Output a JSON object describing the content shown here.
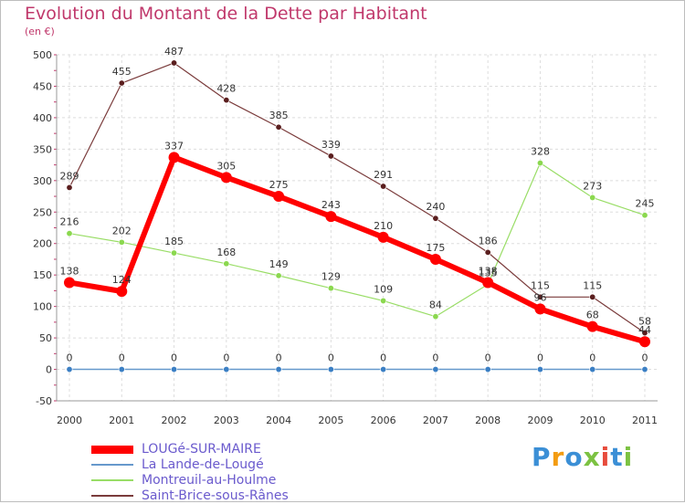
{
  "chart_data": {
    "type": "line",
    "title": "Evolution du Montant de la Dette par Habitant",
    "unit_label": "(en €)",
    "xlabel": "",
    "ylabel": "",
    "categories": [
      "2000",
      "2001",
      "2002",
      "2003",
      "2004",
      "2005",
      "2006",
      "2007",
      "2008",
      "2009",
      "2010",
      "2011"
    ],
    "ylim": [
      -50,
      500
    ],
    "yticks": [
      -50,
      0,
      50,
      100,
      150,
      200,
      250,
      300,
      350,
      400,
      450,
      500
    ],
    "grid": true,
    "legend_position": "bottom-left",
    "series": [
      {
        "name": "LOUGé-SUR-MAIRE",
        "color": "#ff0000",
        "values": [
          138,
          124,
          337,
          305,
          275,
          243,
          210,
          175,
          138,
          96,
          68,
          44
        ]
      },
      {
        "name": "La Lande-de-Lougé",
        "color": "#6699cc",
        "values": [
          0,
          0,
          0,
          0,
          0,
          0,
          0,
          0,
          0,
          0,
          0,
          0
        ]
      },
      {
        "name": "Montreuil-au-Houlme",
        "color": "#99dd66",
        "values": [
          216,
          202,
          185,
          168,
          149,
          129,
          109,
          84,
          135,
          328,
          273,
          245
        ]
      },
      {
        "name": "Saint-Brice-sous-Rânes",
        "color": "#7a3b3b",
        "values": [
          289,
          455,
          487,
          428,
          385,
          339,
          291,
          240,
          186,
          115,
          115,
          58
        ]
      }
    ]
  },
  "brand": {
    "letters": [
      "P",
      "r",
      "o",
      "x",
      "i",
      "t",
      "i"
    ],
    "colors": [
      "#3b8fd6",
      "#f39c12",
      "#3b8fd6",
      "#7cc242",
      "#e74c3c",
      "#3b8fd6",
      "#7cc242"
    ]
  }
}
